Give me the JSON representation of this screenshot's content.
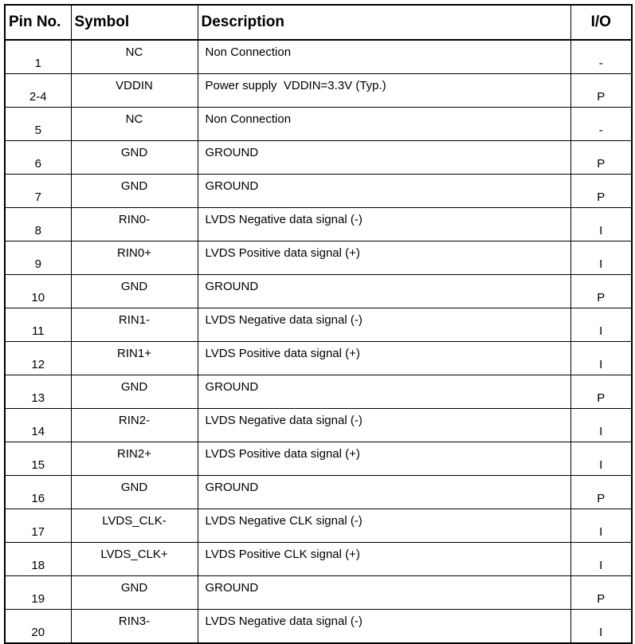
{
  "table": {
    "header": [
      "Pin No.",
      "Symbol",
      "Description",
      "I/O"
    ],
    "rows": [
      [
        "1",
        "NC",
        "Non Connection",
        "-"
      ],
      [
        "2-4",
        "VDDIN",
        "Power supply  VDDIN=3.3V (Typ.)",
        "P"
      ],
      [
        "5",
        "NC",
        "Non Connection",
        "-"
      ],
      [
        "6",
        "GND",
        "GROUND",
        "P"
      ],
      [
        "7",
        "GND",
        "GROUND",
        "P"
      ],
      [
        "8",
        "RIN0-",
        "LVDS Negative data signal (-)",
        "I"
      ],
      [
        "9",
        "RIN0+",
        "LVDS Positive data signal (+)",
        "I"
      ],
      [
        "10",
        "GND",
        "GROUND",
        "P"
      ],
      [
        "11",
        "RIN1-",
        "LVDS Negative data signal (-)",
        "I"
      ],
      [
        "12",
        "RIN1+",
        "LVDS Positive data signal (+)",
        "I"
      ],
      [
        "13",
        "GND",
        "GROUND",
        "P"
      ],
      [
        "14",
        "RIN2-",
        "LVDS Negative data signal (-)",
        "I"
      ],
      [
        "15",
        "RIN2+",
        "LVDS Positive data signal (+)",
        "I"
      ],
      [
        "16",
        "GND",
        "GROUND",
        "P"
      ],
      [
        "17",
        "LVDS_CLK-",
        "LVDS Negative CLK signal (-)",
        "I"
      ],
      [
        "18",
        "LVDS_CLK+",
        "LVDS Positive CLK signal (+)",
        "I"
      ],
      [
        "19",
        "GND",
        "GROUND",
        "P"
      ],
      [
        "20",
        "RIN3-",
        "LVDS Negative data signal (-)",
        "I"
      ]
    ]
  }
}
